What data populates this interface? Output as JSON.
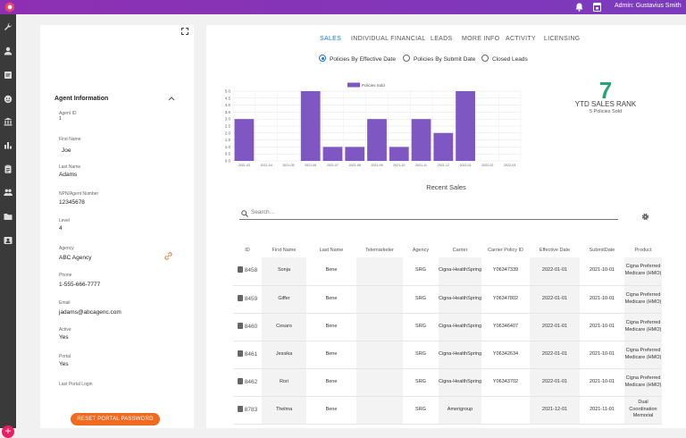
{
  "header": {
    "user_label": "Admin: Gustavius Smith"
  },
  "sidebar": {
    "icons": [
      "wrench-icon",
      "person-icon",
      "note-icon",
      "face-icon",
      "bank-icon",
      "bar-chart-icon",
      "clipboard-icon",
      "people-icon",
      "folder-icon",
      "contact-card-icon"
    ]
  },
  "agent": {
    "title": "Agent Information",
    "fields": [
      {
        "label": "Agent ID",
        "value": "1"
      },
      {
        "label": "First Name",
        "value": "Joe"
      },
      {
        "label": "Last Name",
        "value": "Adams"
      },
      {
        "label": "NPN/Agent Number",
        "value": "12345678"
      },
      {
        "label": "Level",
        "value": "4"
      },
      {
        "label": "Agency",
        "value": "ABC Agency"
      },
      {
        "label": "Phone",
        "value": "1-555-666-7777"
      },
      {
        "label": "Email",
        "value": "jadams@abcagenc.com"
      },
      {
        "label": "Active",
        "value": "Yes"
      },
      {
        "label": "Portal",
        "value": "Yes"
      },
      {
        "label": "Last Portal Login",
        "value": ""
      }
    ],
    "reset_button": "RESET PORTAL PASSWORD"
  },
  "tabs": [
    "SALES",
    "INDIVIDUAL FINANCIAL",
    "LEADS",
    "MORE INFO",
    "ACTIVITY",
    "LICENSING"
  ],
  "radios": [
    "Policies By Effective Date",
    "Policies By Submit Date",
    "Closed Leads"
  ],
  "rank": {
    "number": "7",
    "label": "YTD SALES RANK",
    "sub": "5 Policies Sold"
  },
  "chart_data": {
    "type": "bar",
    "series": [
      {
        "name": "Policies Sold",
        "values": [
          3,
          0,
          0,
          5,
          1,
          1,
          3,
          1,
          3,
          2,
          5,
          0,
          0
        ]
      }
    ],
    "categories": [
      "2021-03",
      "2021-04",
      "2021-05",
      "2021-06",
      "2021-07",
      "2021-08",
      "2021-09",
      "2021-10",
      "2021-11",
      "2021-12",
      "2022-01",
      "2022-02",
      "2022-03"
    ],
    "yticks": [
      "0.0",
      "0.5",
      "1.0",
      "1.5",
      "2.0",
      "2.5",
      "3.0",
      "3.5",
      "4.0",
      "4.5",
      "5.0"
    ],
    "ylim": [
      0,
      5
    ],
    "grid": true,
    "legend": "top-center",
    "color": "#7e57c2"
  },
  "recent": {
    "title": "Recent Sales",
    "search_placeholder": "Search...",
    "columns": [
      "ID",
      "First Name",
      "Last Name",
      "Telemarketer",
      "Agency",
      "Carrier",
      "Carrier Policy ID",
      "Effective Date",
      "SubmitDate",
      "Product"
    ],
    "rows": [
      {
        "id": "8458",
        "first": "Sonja",
        "last": "Bene",
        "tele": "",
        "agency": "SRG",
        "carrier": "Cigna-HealthSpring",
        "policy": "Y06347339",
        "eff": "2022-01-01",
        "sub": "2021-10-01",
        "product": "Cigna Preferred Medicare (HMO)"
      },
      {
        "id": "8459",
        "first": "Giffer",
        "last": "Bene",
        "tele": "",
        "agency": "SRG",
        "carrier": "Cigna-HealthSpring",
        "policy": "Y06347802",
        "eff": "2022-01-01",
        "sub": "2021-10-01",
        "product": "Cigna Preferred Medicare (HMO)"
      },
      {
        "id": "8460",
        "first": "Cesaro",
        "last": "Bene",
        "tele": "",
        "agency": "SRG",
        "carrier": "Cigna-HealthSpring",
        "policy": "Y06346407",
        "eff": "2022-01-01",
        "sub": "2021-10-01",
        "product": "Cigna Preferred Medicare (HMO)"
      },
      {
        "id": "8461",
        "first": "Jessika",
        "last": "Bene",
        "tele": "",
        "agency": "SRG",
        "carrier": "Cigna-HealthSpring",
        "policy": "Y06342634",
        "eff": "2022-01-01",
        "sub": "2021-10-01",
        "product": "Cigna Preferred Medicare (HMO)"
      },
      {
        "id": "8462",
        "first": "Rori",
        "last": "Bene",
        "tele": "",
        "agency": "SRG",
        "carrier": "Cigna-HealthSpring",
        "policy": "Y06343702",
        "eff": "2022-01-01",
        "sub": "2021-10-01",
        "product": "Cigna Preferred Medicare (HMO)"
      },
      {
        "id": "8783",
        "first": "Thelma",
        "last": "Bene",
        "tele": "",
        "agency": "SRG",
        "carrier": "Amerigroup",
        "policy": "",
        "eff": "2021-12-01",
        "sub": "2021-11-01",
        "product": "Dual Coordination Memorial"
      }
    ]
  }
}
